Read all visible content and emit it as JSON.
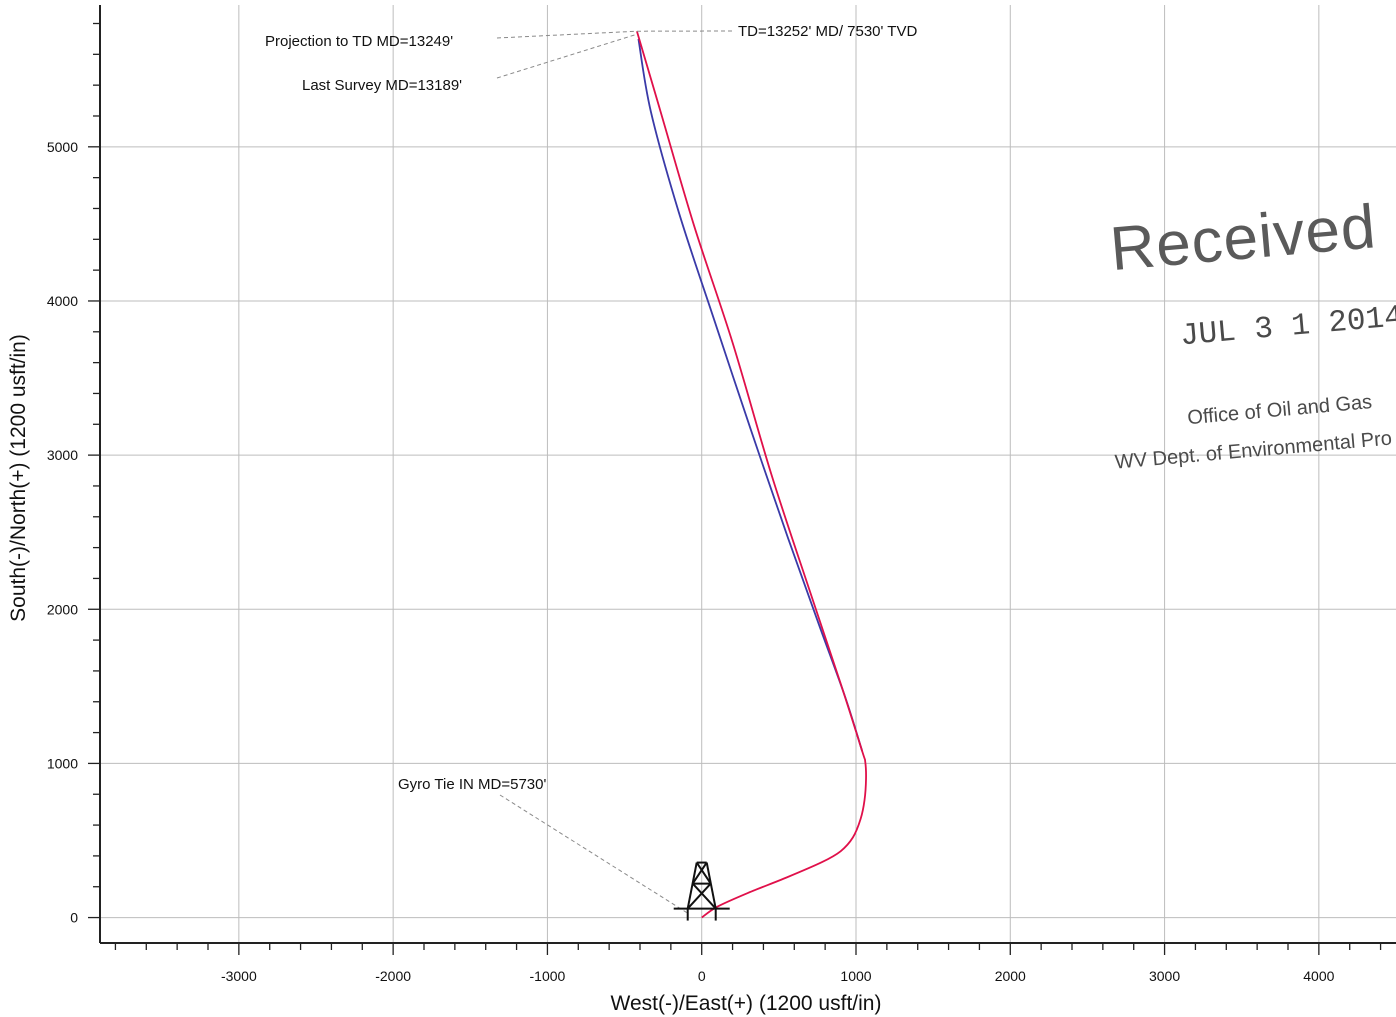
{
  "chart_data": {
    "type": "line",
    "title": "",
    "xlabel": "West(-)/East(+) (1200 usft/in)",
    "ylabel": "South(-)/North(+) (1200 usft/in)",
    "xlim": [
      -3900,
      4500
    ],
    "ylim": [
      -165,
      5920
    ],
    "grid": true,
    "x_ticks": [
      -3000,
      -2000,
      -1000,
      0,
      1000,
      2000,
      3000,
      4000
    ],
    "y_ticks": [
      0,
      1000,
      2000,
      3000,
      4000,
      5000
    ],
    "x_tick_labels": [
      "-3000",
      "-2000",
      "-1000",
      "0",
      "1000",
      "2000",
      "3000",
      "4000"
    ],
    "y_tick_labels": [
      "0",
      "1000",
      "2000",
      "3000",
      "4000",
      "5000"
    ],
    "series": [
      {
        "color": "#e0104a",
        "x": [
          0,
          100,
          300,
          550,
          780,
          900,
          980,
          1030,
          1055,
          1065,
          1060,
          1040,
          900,
          700,
          450,
          200,
          -50,
          -270,
          -420
        ],
        "y": [
          0,
          70,
          160,
          260,
          360,
          430,
          520,
          640,
          760,
          900,
          1010,
          1080,
          1520,
          2120,
          2880,
          3730,
          4490,
          5240,
          5750
        ]
      },
      {
        "color": "#3a3aa8",
        "x": [
          1040,
          930,
          760,
          560,
          320,
          80,
          -150,
          -330,
          -410
        ],
        "y": [
          1080,
          1430,
          1900,
          2460,
          3160,
          3880,
          4580,
          5230,
          5700
        ]
      }
    ],
    "annotations": [
      {
        "text": "Projection to TD MD=13249'",
        "x": -420,
        "y": 5750
      },
      {
        "text": "TD=13252' MD/ 7530' TVD",
        "x": -420,
        "y": 5750
      },
      {
        "text": "Last Survey MD=13189'",
        "x": -430,
        "y": 5720
      },
      {
        "text": "Gyro Tie IN MD=5730'",
        "x": 0,
        "y": 0
      }
    ]
  },
  "stamp": {
    "received": "Received",
    "date": "JUL  3 1  2014",
    "office": "Office of Oil and Gas",
    "dept": "WV Dept. of Environmental Pro"
  }
}
